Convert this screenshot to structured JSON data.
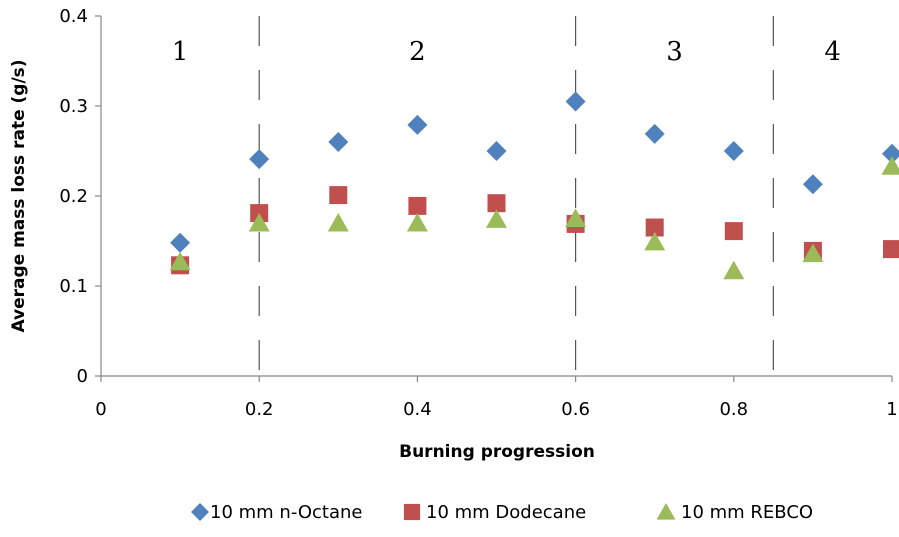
{
  "chart_data": {
    "type": "scatter",
    "title": "",
    "xlabel": "Burning progression",
    "ylabel": "Average mass loss rate (g/s)",
    "xlim": [
      0,
      1
    ],
    "ylim": [
      0,
      0.4
    ],
    "x_ticks": [
      "0",
      "0.2",
      "0.4",
      "0.6",
      "0.8",
      "1"
    ],
    "y_ticks": [
      "0",
      "0.1",
      "0.2",
      "0.3",
      "0.4"
    ],
    "grid": false,
    "legend_position": "bottom",
    "regions": [
      {
        "label": "1",
        "x_start": 0,
        "x_end": 0.2
      },
      {
        "label": "2",
        "x_start": 0.2,
        "x_end": 0.6
      },
      {
        "label": "3",
        "x_start": 0.6,
        "x_end": 0.85
      },
      {
        "label": "4",
        "x_start": 0.85,
        "x_end": 1
      }
    ],
    "region_boundaries": [
      0.2,
      0.6,
      0.85
    ],
    "series": [
      {
        "name": "10 mm n-Octane",
        "marker": "diamond",
        "color": "#4F81BD",
        "x": [
          0.1,
          0.2,
          0.3,
          0.4,
          0.5,
          0.6,
          0.7,
          0.8,
          0.9,
          1.0
        ],
        "y": [
          0.148,
          0.241,
          0.26,
          0.279,
          0.25,
          0.305,
          0.269,
          0.25,
          0.213,
          0.247
        ]
      },
      {
        "name": "10 mm Dodecane",
        "marker": "square",
        "color": "#C0504D",
        "x": [
          0.1,
          0.2,
          0.3,
          0.4,
          0.5,
          0.6,
          0.7,
          0.8,
          0.9,
          1.0
        ],
        "y": [
          0.123,
          0.181,
          0.201,
          0.189,
          0.192,
          0.169,
          0.165,
          0.161,
          0.139,
          0.141
        ]
      },
      {
        "name": "10 mm REBCO",
        "marker": "triangle",
        "color": "#9BBB59",
        "x": [
          0.1,
          0.2,
          0.3,
          0.4,
          0.5,
          0.6,
          0.7,
          0.8,
          0.9,
          1.0
        ],
        "y": [
          0.127,
          0.17,
          0.17,
          0.17,
          0.174,
          0.175,
          0.149,
          0.117,
          0.136,
          0.233
        ]
      }
    ]
  }
}
